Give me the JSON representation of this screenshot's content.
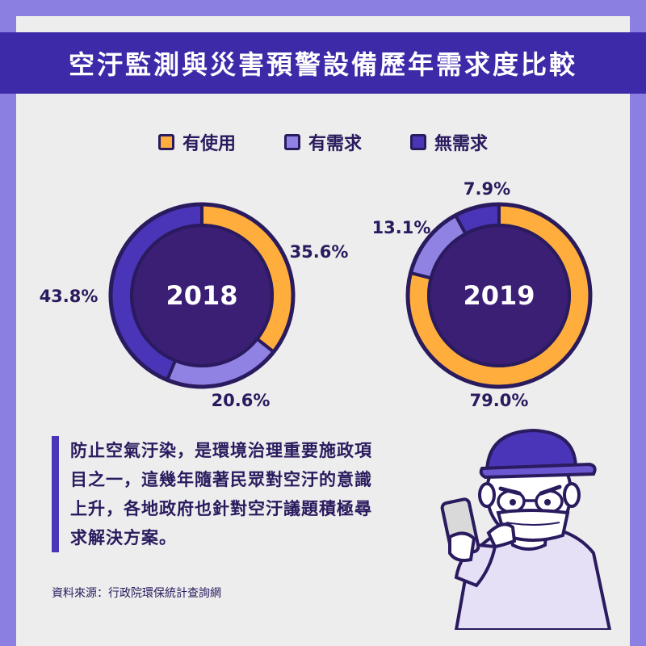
{
  "title": "空汙監測與災害預警設備歷年需求度比較",
  "legend": [
    {
      "label": "有使用",
      "color": "#ffad3d"
    },
    {
      "label": "有需求",
      "color": "#8f82e3"
    },
    {
      "label": "無需求",
      "color": "#4a35b8"
    }
  ],
  "chart_data": [
    {
      "type": "pie",
      "center_label": "2018",
      "slices": [
        {
          "name": "有使用",
          "value": 35.6,
          "label": "35.6%"
        },
        {
          "name": "有需求",
          "value": 20.6,
          "label": "20.6%"
        },
        {
          "name": "無需求",
          "value": 43.8,
          "label": "43.8%"
        }
      ]
    },
    {
      "type": "pie",
      "center_label": "2019",
      "slices": [
        {
          "name": "有使用",
          "value": 79.0,
          "label": "79.0%"
        },
        {
          "name": "有需求",
          "value": 13.1,
          "label": "13.1%"
        },
        {
          "name": "無需求",
          "value": 7.9,
          "label": "7.9%"
        }
      ]
    }
  ],
  "colors": {
    "hole": "#3a1f75",
    "ring_border": "#2a1a5e"
  },
  "body_lines": [
    "防止空氣汙染，是環境治理重要施政項",
    "目之一，這幾年隨著民眾對空汙的意識",
    "上升，各地政府也針對空汙議題積極尋",
    "求解決方案。"
  ],
  "source": "資料來源：行政院環保統計查詢網"
}
